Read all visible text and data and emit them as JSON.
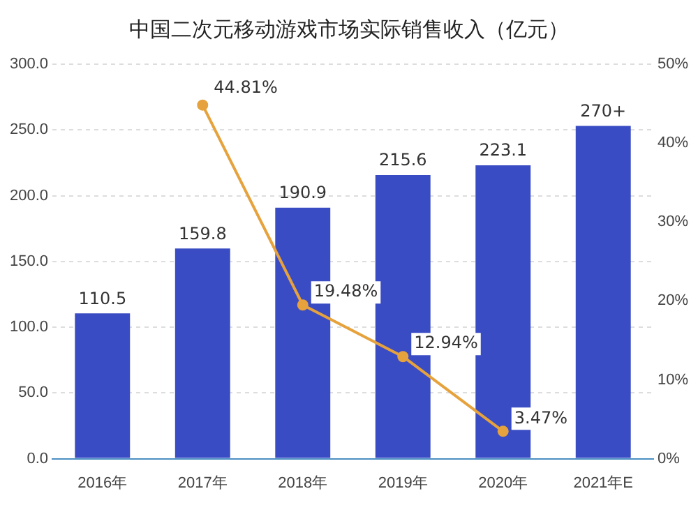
{
  "chart_data": {
    "type": "bar",
    "title": "中国二次元移动游戏市场实际销售收入（亿元）",
    "categories": [
      "2016年",
      "2017年",
      "2018年",
      "2019年",
      "2020年",
      "2021年E"
    ],
    "series": [
      {
        "color": "#3a4cc4",
        "values": [
          110.5,
          159.8,
          190.9,
          215.6,
          223.1,
          253
        ],
        "value_labels": [
          "110.5",
          "159.8",
          "190.9",
          "215.6",
          "223.1",
          "270+"
        ]
      },
      {
        "type": "line",
        "axis": "y2",
        "color": "#e6a23c",
        "values": [
          null,
          44.81,
          19.48,
          12.94,
          3.47,
          null
        ],
        "value_labels": [
          null,
          "44.81%",
          "19.48%",
          "12.94%",
          "3.47%",
          null
        ]
      }
    ],
    "ylim": [
      0,
      300
    ],
    "yticks": [
      {
        "value": 0,
        "label": "0.0"
      },
      {
        "value": 50,
        "label": "50.0"
      },
      {
        "value": 100,
        "label": "100.0"
      },
      {
        "value": 150,
        "label": "150.0"
      },
      {
        "value": 200,
        "label": "200.0"
      },
      {
        "value": 250,
        "label": "250.0"
      },
      {
        "value": 300,
        "label": "300.0"
      }
    ],
    "y2lim": [
      0,
      50
    ],
    "y2ticks": [
      {
        "value": 0,
        "label": "0%"
      },
      {
        "value": 10,
        "label": "10%"
      },
      {
        "value": 20,
        "label": "20%"
      },
      {
        "value": 30,
        "label": "30%"
      },
      {
        "value": 40,
        "label": "40%"
      },
      {
        "value": 50,
        "label": "50%"
      }
    ],
    "grid": "y",
    "legend": false,
    "marker": "circle"
  }
}
